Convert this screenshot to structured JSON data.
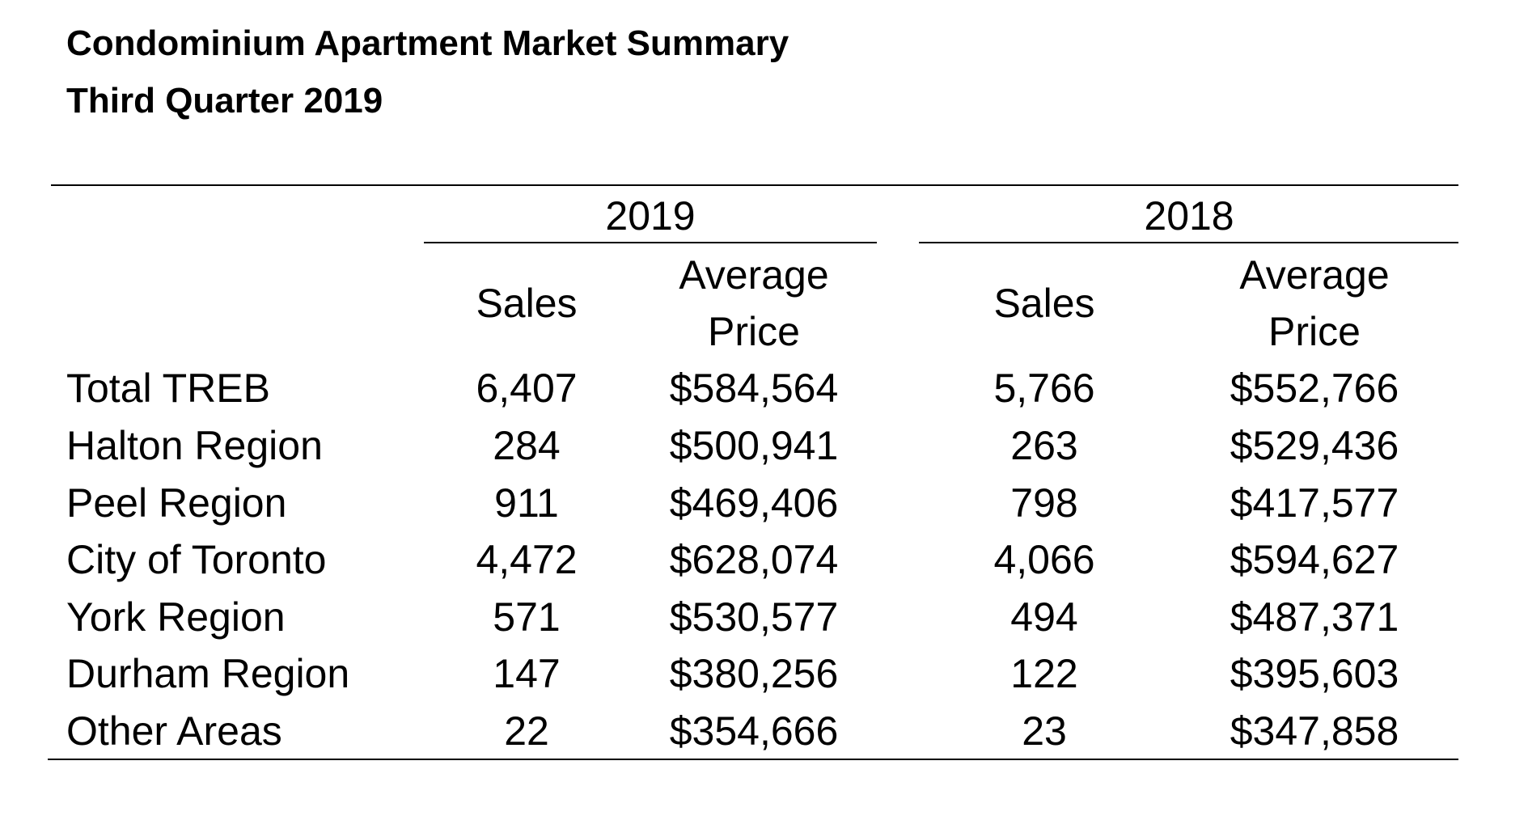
{
  "title": {
    "line1": "Condominium Apartment Market Summary",
    "line2": "Third Quarter 2019"
  },
  "table": {
    "groups": [
      "2019",
      "2018"
    ],
    "sub_headers": {
      "sales": "Sales",
      "avg_line1": "Average",
      "avg_line2": "Price"
    },
    "rows": [
      {
        "region": "Total TREB",
        "sales_2019": "6,407",
        "price_2019": "$584,564",
        "sales_2018": "5,766",
        "price_2018": "$552,766"
      },
      {
        "region": "Halton Region",
        "sales_2019": "284",
        "price_2019": "$500,941",
        "sales_2018": "263",
        "price_2018": "$529,436"
      },
      {
        "region": "Peel Region",
        "sales_2019": "911",
        "price_2019": "$469,406",
        "sales_2018": "798",
        "price_2018": "$417,577"
      },
      {
        "region": "City of Toronto",
        "sales_2019": "4,472",
        "price_2019": "$628,074",
        "sales_2018": "4,066",
        "price_2018": "$594,627"
      },
      {
        "region": "York Region",
        "sales_2019": "571",
        "price_2019": "$530,577",
        "sales_2018": "494",
        "price_2018": "$487,371"
      },
      {
        "region": "Durham Region",
        "sales_2019": "147",
        "price_2019": "$380,256",
        "sales_2018": "122",
        "price_2018": "$395,603"
      },
      {
        "region": "Other Areas",
        "sales_2019": "22",
        "price_2019": "$354,666",
        "sales_2018": "23",
        "price_2018": "$347,858"
      }
    ]
  }
}
